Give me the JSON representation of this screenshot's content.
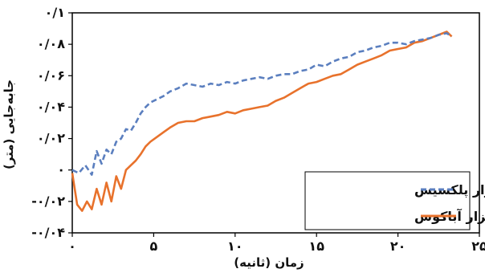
{
  "chart_data": {
    "type": "line",
    "xlabel": "زمان (ثانیه)",
    "ylabel": "جابه‌جایی (متر)",
    "xlim": [
      0,
      25
    ],
    "ylim": [
      -0.04,
      0.1
    ],
    "xticks": [
      0,
      5,
      10,
      15,
      20,
      25
    ],
    "xtick_labels": [
      "۰",
      "۵",
      "۱۰",
      "۱۵",
      "۲۰",
      "۲۵"
    ],
    "yticks": [
      -0.04,
      -0.02,
      0,
      0.02,
      0.04,
      0.06,
      0.08,
      0.1
    ],
    "ytick_labels": [
      "-۰/۰۴",
      "-۰/۰۲",
      "۰",
      "۰/۰۲",
      "۰/۰۴",
      "۰/۰۶",
      "۰/۰۸",
      "۰/۱"
    ],
    "grid": false,
    "legend_position": "bottom-right",
    "series": [
      {
        "name": "نرم افزار پلکسیس",
        "color": "#5b7fbf",
        "style": "dashed",
        "x": [
          0,
          0.4,
          0.8,
          1.2,
          1.5,
          1.8,
          2.1,
          2.4,
          2.7,
          3.0,
          3.3,
          3.6,
          3.9,
          4.2,
          4.5,
          4.8,
          5.2,
          5.6,
          6.0,
          6.5,
          7.0,
          7.5,
          8.0,
          8.5,
          9.0,
          9.5,
          10.0,
          10.5,
          11.0,
          11.5,
          12.0,
          12.5,
          13.0,
          13.5,
          14.0,
          14.5,
          15.0,
          15.5,
          16.0,
          16.5,
          17.0,
          17.5,
          18.0,
          18.5,
          19.0,
          19.5,
          20.0,
          20.5,
          21.0,
          21.5,
          22.0,
          22.5,
          23.0,
          23.3
        ],
        "y": [
          0.0,
          -0.002,
          0.003,
          -0.003,
          0.012,
          0.004,
          0.013,
          0.01,
          0.018,
          0.02,
          0.026,
          0.025,
          0.03,
          0.036,
          0.04,
          0.043,
          0.045,
          0.047,
          0.05,
          0.052,
          0.055,
          0.054,
          0.053,
          0.055,
          0.054,
          0.056,
          0.055,
          0.057,
          0.058,
          0.059,
          0.058,
          0.06,
          0.061,
          0.061,
          0.063,
          0.064,
          0.067,
          0.066,
          0.069,
          0.071,
          0.072,
          0.075,
          0.076,
          0.078,
          0.079,
          0.081,
          0.081,
          0.08,
          0.082,
          0.083,
          0.084,
          0.086,
          0.087,
          0.085
        ]
      },
      {
        "name": "نرم افزار آباکوس",
        "color": "#e8722c",
        "style": "solid",
        "x": [
          0,
          0.3,
          0.6,
          0.9,
          1.2,
          1.5,
          1.8,
          2.1,
          2.4,
          2.7,
          3.0,
          3.3,
          3.6,
          3.9,
          4.2,
          4.5,
          4.8,
          5.2,
          5.6,
          6.0,
          6.5,
          7.0,
          7.5,
          8.0,
          8.5,
          9.0,
          9.5,
          10.0,
          10.5,
          11.0,
          11.5,
          12.0,
          12.5,
          13.0,
          13.5,
          14.0,
          14.5,
          15.0,
          15.5,
          16.0,
          16.5,
          17.0,
          17.5,
          18.0,
          18.5,
          19.0,
          19.5,
          20.0,
          20.5,
          21.0,
          21.5,
          22.0,
          22.5,
          23.0,
          23.3
        ],
        "y": [
          -0.002,
          -0.022,
          -0.026,
          -0.02,
          -0.025,
          -0.012,
          -0.022,
          -0.008,
          -0.02,
          -0.004,
          -0.012,
          0.0,
          0.003,
          0.006,
          0.01,
          0.015,
          0.018,
          0.021,
          0.024,
          0.027,
          0.03,
          0.031,
          0.031,
          0.033,
          0.034,
          0.035,
          0.037,
          0.036,
          0.038,
          0.039,
          0.04,
          0.041,
          0.044,
          0.046,
          0.049,
          0.052,
          0.055,
          0.056,
          0.058,
          0.06,
          0.061,
          0.064,
          0.067,
          0.069,
          0.071,
          0.073,
          0.076,
          0.077,
          0.078,
          0.081,
          0.082,
          0.084,
          0.086,
          0.088,
          0.085
        ]
      }
    ]
  }
}
